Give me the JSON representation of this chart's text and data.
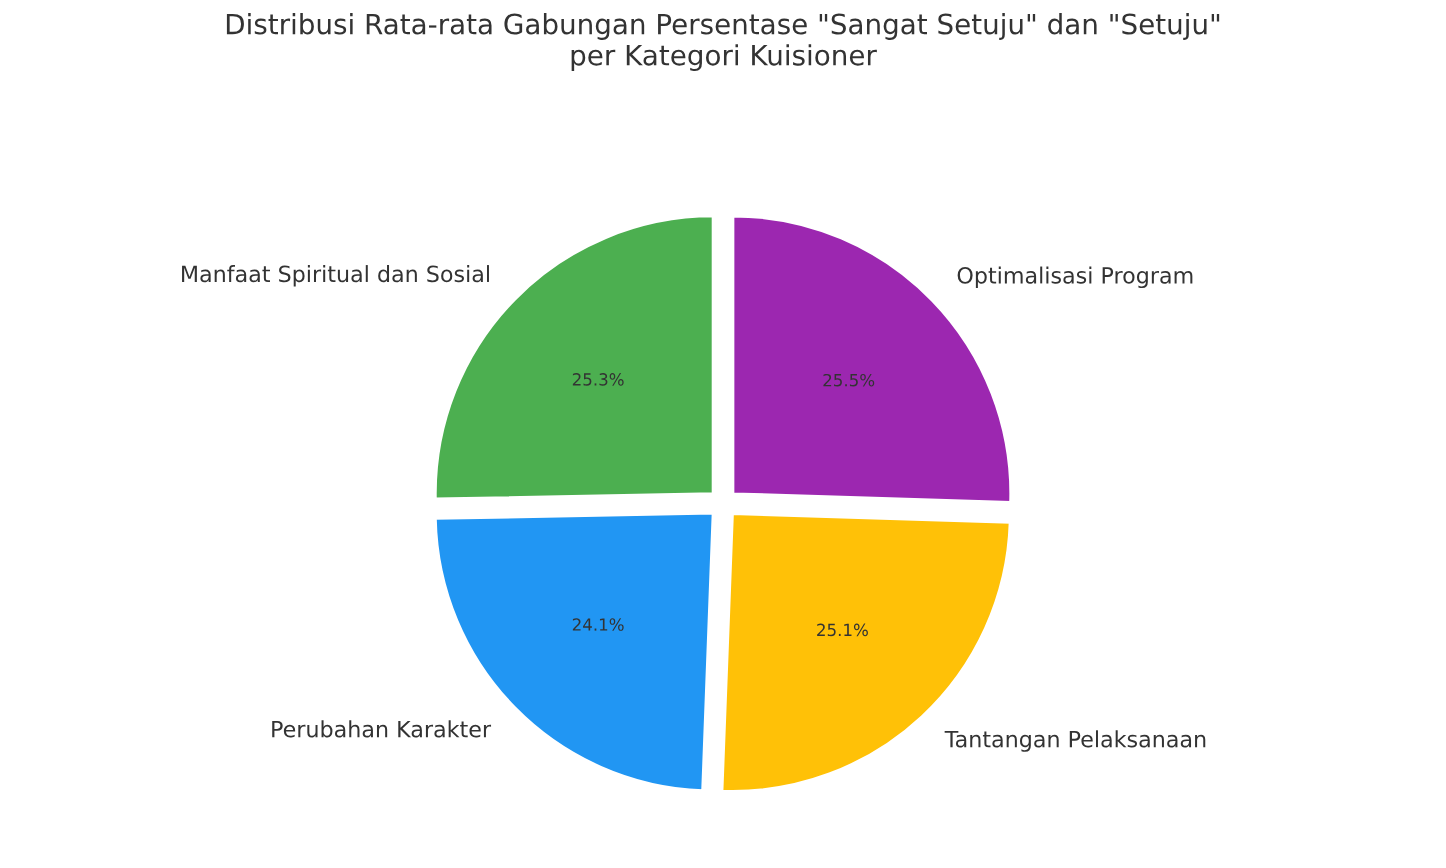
{
  "chart_data": {
    "type": "pie",
    "title": "Distribusi Rata-rata Gabungan Persentase \"Sangat Setuju\" dan \"Setuju\"\nper Kategori Kuisioner",
    "categories": [
      "Manfaat Spiritual dan Sosial",
      "Perubahan Karakter",
      "Tantangan Pelaksanaan",
      "Optimalisasi Program"
    ],
    "values": [
      25.3,
      24.1,
      25.1,
      25.5
    ],
    "colors": [
      "#4caf50",
      "#2196f3",
      "#ffc107",
      "#9c27b0"
    ],
    "value_labels": [
      "25.3%",
      "24.1%",
      "25.1%",
      "25.5%"
    ]
  }
}
